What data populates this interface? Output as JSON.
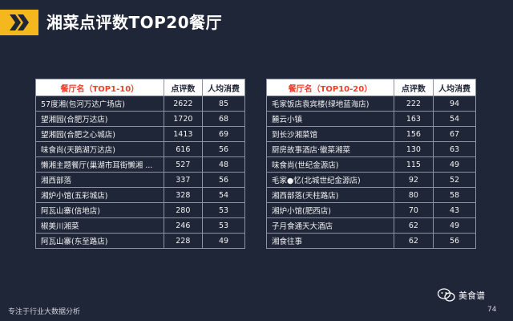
{
  "title": "湘菜点评数TOP20餐厅",
  "colors": {
    "accent": "#f4b81e",
    "header_red": "#e8412c",
    "background": "#1f2638"
  },
  "tables": [
    {
      "headers": [
        "餐厅名（TOP1-10）",
        "点评数",
        "人均消费"
      ],
      "rows": [
        {
          "name": "57度湘(包河万达广场店)",
          "reviews": "2622",
          "avg": "85"
        },
        {
          "name": "望湘园(合肥万达店)",
          "reviews": "1720",
          "avg": "68"
        },
        {
          "name": "望湘园(合肥之心城店)",
          "reviews": "1413",
          "avg": "69"
        },
        {
          "name": "味食尚(天鹅湖万达店)",
          "reviews": "616",
          "avg": "56"
        },
        {
          "name": "懒湘主题餐厅(巢湖市耳街懒湘 ...",
          "reviews": "527",
          "avg": "48"
        },
        {
          "name": "湘西部落",
          "reviews": "337",
          "avg": "56"
        },
        {
          "name": "湘炉小馆(五彩城店)",
          "reviews": "328",
          "avg": "54"
        },
        {
          "name": "阿瓦山寨(信地店)",
          "reviews": "280",
          "avg": "53"
        },
        {
          "name": "椒美川湘菜",
          "reviews": "246",
          "avg": "53"
        },
        {
          "name": "阿瓦山寨(东至路店)",
          "reviews": "228",
          "avg": "49"
        }
      ]
    },
    {
      "headers": [
        "餐厅名（TOP10-20）",
        "点评数",
        "人均消费"
      ],
      "rows": [
        {
          "name": "毛家饭店袁宾楼(绿地蓝海店)",
          "reviews": "222",
          "avg": "94"
        },
        {
          "name": "麓云小镇",
          "reviews": "163",
          "avg": "54"
        },
        {
          "name": "到长沙湘菜馆",
          "reviews": "156",
          "avg": "67"
        },
        {
          "name": "厨房故事酒店·徽菜湘菜",
          "reviews": "130",
          "avg": "63"
        },
        {
          "name": "味食尚(世纪金源店)",
          "reviews": "115",
          "avg": "49"
        },
        {
          "name": "毛家●忆(北城世纪金源店)",
          "reviews": "92",
          "avg": "52"
        },
        {
          "name": "湘西部落(天柱路店)",
          "reviews": "80",
          "avg": "58"
        },
        {
          "name": "湘炉小馆(肥西店)",
          "reviews": "70",
          "avg": "43"
        },
        {
          "name": "子月食通天大酒店",
          "reviews": "62",
          "avg": "49"
        },
        {
          "name": "湘食往事",
          "reviews": "62",
          "avg": "56"
        }
      ]
    }
  ],
  "footer": {
    "left": "专注于行业大数据分析",
    "brand": "美食谱",
    "brand_icon": "wechat-icon",
    "page": "74"
  }
}
